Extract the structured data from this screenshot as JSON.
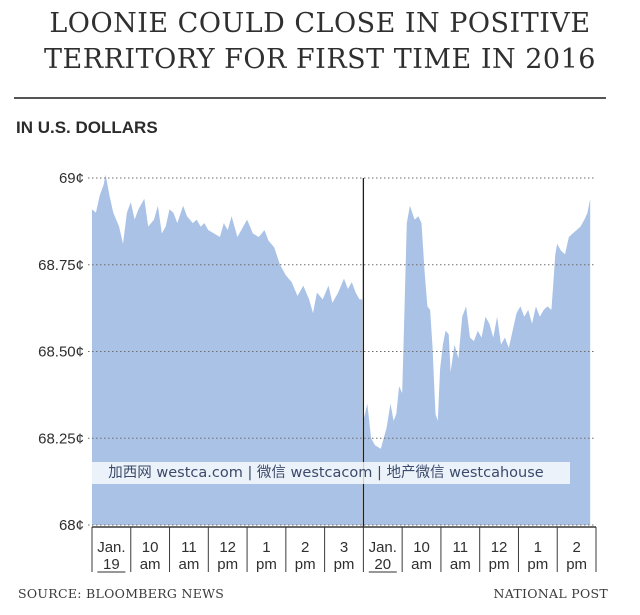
{
  "headline": {
    "line1": "LOONIE COULD CLOSE IN POSITIVE",
    "line2": "TERRITORY FOR FIRST TIME IN 2016"
  },
  "watermark": "加西网 westca.com | 微信 westcacom | 地产微信 westcahouse",
  "footer": {
    "source": "SOURCE: BLOOMBERG NEWS",
    "credit": "NATIONAL POST"
  },
  "chart_data": {
    "type": "area",
    "title": "",
    "ylabel": "IN U.S. DOLLARS",
    "y_unit": "¢ (US cents)",
    "ylim": [
      68.0,
      69.0
    ],
    "yticks": [
      {
        "value": 69.0,
        "label": "69¢"
      },
      {
        "value": 68.75,
        "label": "68.75¢"
      },
      {
        "value": 68.5,
        "label": "68.50¢"
      },
      {
        "value": 68.25,
        "label": "68.25¢"
      },
      {
        "value": 68.0,
        "label": "68¢"
      }
    ],
    "grid": true,
    "fill_color": "#a9c2e6",
    "grid_color": "#6d6d6d",
    "divider": "Jan. 20 open",
    "x_ticks": [
      {
        "line1": "Jan.",
        "line2": "19",
        "underline": true
      },
      {
        "line1": "10",
        "line2": "am"
      },
      {
        "line1": "11",
        "line2": "am"
      },
      {
        "line1": "12",
        "line2": "pm"
      },
      {
        "line1": "1",
        "line2": "pm"
      },
      {
        "line1": "2",
        "line2": "pm"
      },
      {
        "line1": "3",
        "line2": "pm"
      },
      {
        "line1": "Jan.",
        "line2": "20",
        "underline": true
      },
      {
        "line1": "10",
        "line2": "am"
      },
      {
        "line1": "11",
        "line2": "am"
      },
      {
        "line1": "12",
        "line2": "pm"
      },
      {
        "line1": "1",
        "line2": "pm"
      },
      {
        "line1": "2",
        "line2": "pm"
      }
    ],
    "series": [
      {
        "x": [
          0,
          0.1,
          0.2,
          0.3,
          0.35,
          0.45,
          0.55,
          0.7,
          0.8,
          0.9,
          1.0,
          1.1,
          1.2,
          1.35,
          1.45,
          1.6,
          1.7,
          1.8,
          1.9,
          2.0,
          2.1,
          2.2,
          2.35,
          2.45,
          2.6,
          2.7,
          2.8,
          2.9,
          3.0,
          3.15,
          3.3,
          3.4,
          3.5,
          3.6,
          3.75,
          3.9,
          4.0,
          4.15,
          4.3,
          4.45,
          4.55,
          4.7,
          4.85,
          5.0,
          5.15,
          5.3,
          5.45,
          5.6,
          5.7,
          5.8,
          5.95,
          6.1,
          6.2,
          6.35,
          6.5,
          6.6,
          6.7,
          6.8,
          6.9,
          6.97
        ],
        "values": [
          68.91,
          68.9,
          68.95,
          68.98,
          69.01,
          68.95,
          68.9,
          68.86,
          68.81,
          68.9,
          68.93,
          68.88,
          68.91,
          68.94,
          68.86,
          68.88,
          68.92,
          68.84,
          68.86,
          68.91,
          68.9,
          68.87,
          68.92,
          68.89,
          68.87,
          68.88,
          68.86,
          68.87,
          68.85,
          68.84,
          68.83,
          68.87,
          68.85,
          68.89,
          68.83,
          68.86,
          68.88,
          68.84,
          68.83,
          68.85,
          68.82,
          68.8,
          68.75,
          68.72,
          68.7,
          68.66,
          68.69,
          68.65,
          68.61,
          68.67,
          68.65,
          68.69,
          68.64,
          68.67,
          68.71,
          68.68,
          68.7,
          68.67,
          68.65,
          68.65
        ]
      },
      {
        "x": [
          7.0,
          7.1,
          7.2,
          7.3,
          7.45,
          7.6,
          7.7,
          7.78,
          7.85,
          7.92,
          8.0,
          8.12,
          8.2,
          8.32,
          8.42,
          8.5,
          8.58,
          8.65,
          8.72,
          8.78,
          8.86,
          8.92,
          8.98,
          9.05,
          9.12,
          9.2,
          9.25,
          9.35,
          9.45,
          9.55,
          9.65,
          9.75,
          9.85,
          9.95,
          10.05,
          10.15,
          10.25,
          10.35,
          10.45,
          10.55,
          10.65,
          10.75,
          10.85,
          10.95,
          11.05,
          11.15,
          11.25,
          11.35,
          11.45,
          11.55,
          11.65,
          11.75,
          11.85,
          11.9,
          11.95,
          12.0,
          12.1,
          12.2,
          12.3,
          12.4,
          12.5,
          12.6,
          12.7,
          12.78,
          12.85
        ],
        "values": [
          68.3,
          68.35,
          68.25,
          68.23,
          68.22,
          68.28,
          68.35,
          68.3,
          68.32,
          68.4,
          68.38,
          68.87,
          68.92,
          68.88,
          68.89,
          68.87,
          68.73,
          68.63,
          68.62,
          68.52,
          68.32,
          68.3,
          68.45,
          68.52,
          68.56,
          68.55,
          68.44,
          68.52,
          68.48,
          68.6,
          68.63,
          68.54,
          68.53,
          68.56,
          68.54,
          68.6,
          68.58,
          68.54,
          68.6,
          68.52,
          68.54,
          68.51,
          68.56,
          68.61,
          68.63,
          68.6,
          68.62,
          68.58,
          68.63,
          68.6,
          68.62,
          68.63,
          68.62,
          68.7,
          68.78,
          68.81,
          68.79,
          68.78,
          68.83,
          68.84,
          68.85,
          68.86,
          68.88,
          68.9,
          68.94
        ]
      }
    ]
  }
}
